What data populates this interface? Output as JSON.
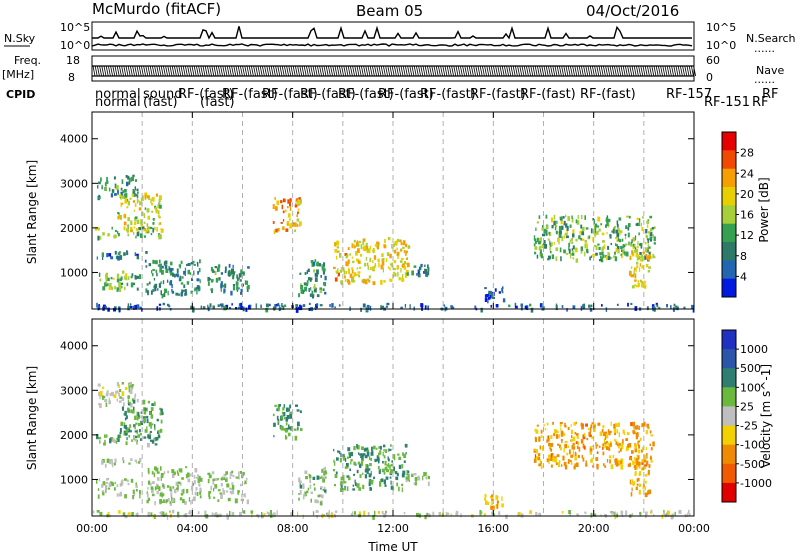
{
  "header": {
    "station": "McMurdo (fitACF)",
    "beam": "Beam 05",
    "date": "04/Oct/2016"
  },
  "strip_labels": {
    "nsky": "N.Sky",
    "nsearch": "N.Search",
    "freq_line1": "Freq.",
    "freq_line2": "[MHz]",
    "nave": "Nave",
    "cpid": "CPID",
    "nsky_ticks": [
      "10^5",
      "10^0"
    ],
    "nsearch_ticks": [
      "10^5",
      "10^0"
    ],
    "freq_ticks": [
      "18",
      "8"
    ],
    "nave_ticks": [
      "60",
      "0"
    ],
    "dots": "......"
  },
  "cpid_labels": {
    "row1": [
      "normal",
      "sound",
      "RF-(fast)",
      "RF-(fast)",
      "RF-(fast)",
      "RF-(fast)",
      "RF-(fast)",
      "RF-(fast)",
      "RF-(fast)",
      "RF-(fast)",
      "RF-(fast)",
      "RF-(fast)",
      "RF-157",
      "RF"
    ],
    "row2": [
      "normal",
      "(fast)",
      "(fast)",
      "RF-151",
      "RF"
    ]
  },
  "chart_data": [
    {
      "type": "heatmap",
      "title": "",
      "xlabel": "",
      "ylabel": "Slant Range [km]",
      "x_ticks": [
        "00:00",
        "04:00",
        "08:00",
        "12:00",
        "16:00",
        "20:00",
        "00:00"
      ],
      "y_ticks": [
        1000,
        2000,
        3000,
        4000
      ],
      "xlim_hours": [
        0,
        24
      ],
      "ylim": [
        180,
        4600
      ],
      "colorbar": {
        "label": "Power [dB]",
        "ticks": [
          "28",
          "24",
          "20",
          "16",
          "12",
          "8",
          "4"
        ],
        "colors": [
          "#e60000",
          "#f04a00",
          "#f5a000",
          "#e8d000",
          "#a6cf3a",
          "#35a050",
          "#2e7a68",
          "#2266b0",
          "#0019e0"
        ]
      },
      "regions": [
        {
          "t": [
            0.1,
            1.9
          ],
          "r": [
            650,
            1050
          ],
          "v": 14
        },
        {
          "t": [
            0.1,
            2.7
          ],
          "r": [
            1800,
            2050
          ],
          "v": 14
        },
        {
          "t": [
            0.1,
            2.2
          ],
          "r": [
            1350,
            1500
          ],
          "v": 8
        },
        {
          "t": [
            0.2,
            1.8
          ],
          "r": [
            2700,
            3200
          ],
          "v": 10
        },
        {
          "t": [
            1.0,
            2.8
          ],
          "r": [
            1950,
            2800
          ],
          "v": 18
        },
        {
          "t": [
            2.1,
            4.3
          ],
          "r": [
            500,
            1300
          ],
          "v": 9
        },
        {
          "t": [
            4.6,
            6.2
          ],
          "r": [
            550,
            1200
          ],
          "v": 10
        },
        {
          "t": [
            7.2,
            8.3
          ],
          "r": [
            1950,
            2700
          ],
          "v": 22
        },
        {
          "t": [
            8.2,
            9.3
          ],
          "r": [
            500,
            1300
          ],
          "v": 10
        },
        {
          "t": [
            9.6,
            12.6
          ],
          "r": [
            800,
            1800
          ],
          "v": 20
        },
        {
          "t": [
            12.5,
            13.4
          ],
          "r": [
            900,
            1200
          ],
          "v": 8
        },
        {
          "t": [
            15.6,
            16.4
          ],
          "r": [
            400,
            700
          ],
          "v": 6
        },
        {
          "t": [
            17.6,
            22.4
          ],
          "r": [
            1300,
            2300
          ],
          "v": 14
        },
        {
          "t": [
            21.4,
            22.2
          ],
          "r": [
            700,
            1600
          ],
          "v": 20
        },
        {
          "t": [
            0,
            24
          ],
          "r": [
            200,
            320
          ],
          "v": 6
        }
      ]
    },
    {
      "type": "heatmap",
      "title": "",
      "xlabel": "Time UT",
      "ylabel": "Slant Range [km]",
      "x_ticks": [
        "00:00",
        "04:00",
        "08:00",
        "12:00",
        "16:00",
        "20:00",
        "00:00"
      ],
      "y_ticks": [
        1000,
        2000,
        3000,
        4000
      ],
      "xlim_hours": [
        0,
        24
      ],
      "ylim": [
        180,
        4600
      ],
      "colorbar": {
        "label": "Velocity [m s^-1]",
        "ticks": [
          "1000",
          "500",
          "100",
          "25",
          "-25",
          "-100",
          "-500",
          "-1000"
        ],
        "colors": [
          "#2030c0",
          "#2b55a8",
          "#2e7f72",
          "#6ab83e",
          "#bfbfbf",
          "#f3d000",
          "#f08a00",
          "#f05a00",
          "#e00000"
        ]
      },
      "regions": [
        {
          "t": [
            0.1,
            1.9
          ],
          "r": [
            650,
            1050
          ],
          "v": 120
        },
        {
          "t": [
            0.1,
            2.7
          ],
          "r": [
            1800,
            2050
          ],
          "v": 300
        },
        {
          "t": [
            0.1,
            2.2
          ],
          "r": [
            1350,
            1500
          ],
          "v": 120
        },
        {
          "t": [
            0.2,
            1.8
          ],
          "r": [
            2700,
            3200
          ],
          "v": 60
        },
        {
          "t": [
            1.0,
            2.8
          ],
          "r": [
            1950,
            2800
          ],
          "v": 350
        },
        {
          "t": [
            2.1,
            4.3
          ],
          "r": [
            500,
            1300
          ],
          "v": 150
        },
        {
          "t": [
            4.6,
            6.2
          ],
          "r": [
            550,
            1200
          ],
          "v": 120
        },
        {
          "t": [
            7.2,
            8.3
          ],
          "r": [
            1950,
            2700
          ],
          "v": 400
        },
        {
          "t": [
            8.2,
            9.3
          ],
          "r": [
            500,
            1300
          ],
          "v": 200
        },
        {
          "t": [
            9.6,
            12.6
          ],
          "r": [
            800,
            1800
          ],
          "v": 400
        },
        {
          "t": [
            12.5,
            13.4
          ],
          "r": [
            900,
            1200
          ],
          "v": 200
        },
        {
          "t": [
            15.6,
            16.4
          ],
          "r": [
            400,
            700
          ],
          "v": -400
        },
        {
          "t": [
            17.6,
            22.4
          ],
          "r": [
            1300,
            2300
          ],
          "v": -450
        },
        {
          "t": [
            21.4,
            22.2
          ],
          "r": [
            700,
            1600
          ],
          "v": -400
        },
        {
          "t": [
            0,
            24
          ],
          "r": [
            200,
            320
          ],
          "v": 40
        }
      ]
    }
  ]
}
